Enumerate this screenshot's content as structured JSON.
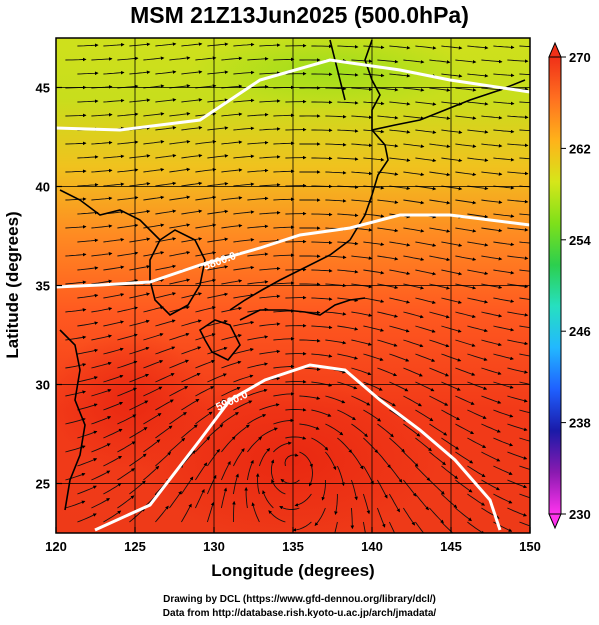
{
  "title": "MSM 21Z13Jun2025 (500.0hPa)",
  "x_axis": {
    "label": "Longitude (degrees)",
    "range": [
      120,
      150
    ],
    "ticks": [
      "120",
      "125",
      "130",
      "135",
      "140",
      "145",
      "150"
    ]
  },
  "y_axis": {
    "label": "Latitude  (degrees)",
    "range": [
      22.5,
      47.5
    ],
    "ticks": [
      "25",
      "30",
      "35",
      "40",
      "45"
    ]
  },
  "colorbar": {
    "range": [
      230,
      270
    ],
    "ticks": [
      "270",
      "262",
      "254",
      "246",
      "238",
      "230"
    ],
    "colors": [
      "#ff33ee",
      "#8a1ab0",
      "#1a1aa8",
      "#1f60ff",
      "#22b8ff",
      "#26e0c0",
      "#2ccf4e",
      "#7ee01a",
      "#d6e61a",
      "#ffb21a",
      "#ff7020",
      "#f03018"
    ]
  },
  "contours": [
    {
      "label": "5800.0",
      "color": "#ffffff"
    },
    {
      "label": "5900.0",
      "color": "#ffffff"
    }
  ],
  "field": "temperature (K) with wind streamlines",
  "credits": {
    "line1": "Drawing by DCL (https://www.gfd-dennou.org/library/dcl/)",
    "line2": "Data from http://database.rish.kyoto-u.ac.jp/arch/jmadata/"
  }
}
